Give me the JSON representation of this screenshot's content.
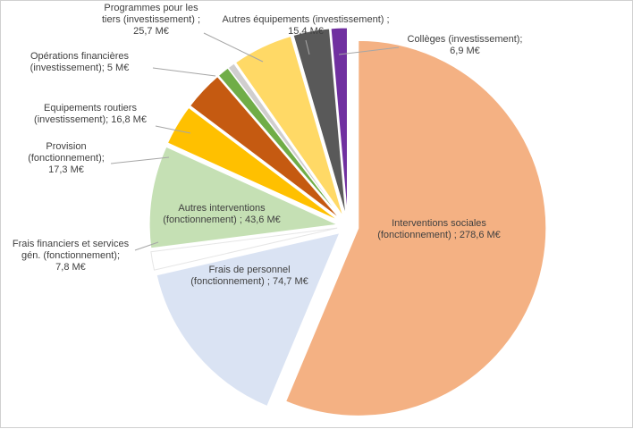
{
  "chart_data": {
    "type": "pie",
    "title": "",
    "unit": "M€",
    "slices": [
      {
        "label": [
          "Interventions sociales",
          "(fonctionnement) ; 278,6 M€"
        ],
        "value": 278.6,
        "color": "#F4B183"
      },
      {
        "label": [
          "Frais de personnel",
          "(fonctionnement) ; 74,7 M€"
        ],
        "value": 74.7,
        "color": "#DAE3F3"
      },
      {
        "label": [
          "Frais financiers et services",
          "gén. (fonctionnement);",
          "7,8 M€"
        ],
        "value": 7.8,
        "color": "#FFFFFF"
      },
      {
        "label": [
          "Autres interventions",
          "(fonctionnement) ; 43,6 M€"
        ],
        "value": 43.6,
        "color": "#C5E0B4"
      },
      {
        "label": [
          "Provision",
          "(fonctionnement);",
          "17,3 M€"
        ],
        "value": 17.3,
        "color": "#FFC000"
      },
      {
        "label": [
          "Equipements routiers",
          "(investissement); 16,8 M€"
        ],
        "value": 16.8,
        "color": "#C55A11"
      },
      {
        "label": [
          "Opérations financières",
          "(investissement); 5 M€"
        ],
        "value": 5.0,
        "color": "#70AD47"
      },
      {
        "label": [],
        "value": 3.0,
        "color": "#D0CECE"
      },
      {
        "label": [
          "Programmes pour les",
          "tiers (investissement) ;",
          "25,7 M€"
        ],
        "value": 25.7,
        "color": "#FFD966"
      },
      {
        "label": [
          "Autres équipements (investissement) ;",
          "15,4 M€"
        ],
        "value": 15.4,
        "color": "#595959"
      },
      {
        "label": [
          "Collèges (investissement);",
          "6,9 M€"
        ],
        "value": 6.9,
        "color": "#7030A0"
      }
    ]
  }
}
